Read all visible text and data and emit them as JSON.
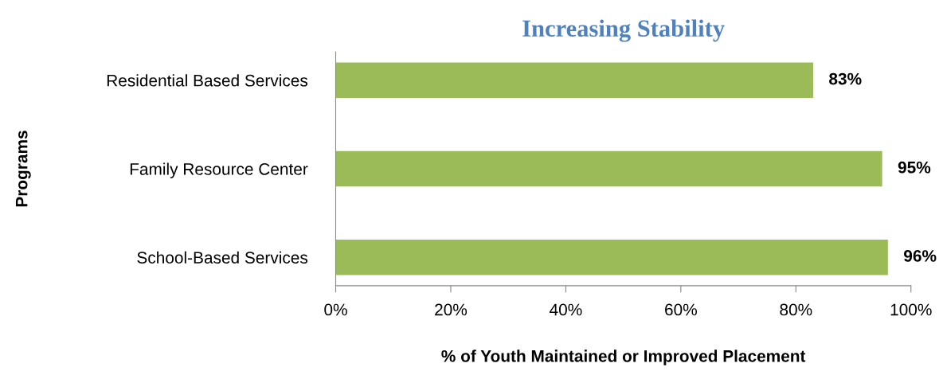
{
  "chart_data": {
    "type": "bar",
    "orientation": "horizontal",
    "title": "Increasing Stability",
    "xlabel": "% of Youth Maintained or Improved Placement",
    "ylabel": "Programs",
    "categories": [
      "Residential Based Services",
      "Family Resource Center",
      "School-Based Services"
    ],
    "values": [
      83,
      95,
      96
    ],
    "color": "#9bbb59",
    "value_labels": [
      "83%",
      "95%",
      "96%"
    ],
    "xlim": [
      0,
      100
    ],
    "xticks": [
      {
        "value": 0,
        "label": "0%"
      },
      {
        "value": 20,
        "label": "20%"
      },
      {
        "value": 40,
        "label": "40%"
      },
      {
        "value": 60,
        "label": "60%"
      },
      {
        "value": 80,
        "label": "80%"
      },
      {
        "value": 100,
        "label": "100%"
      }
    ],
    "grid": false,
    "legend": false
  }
}
